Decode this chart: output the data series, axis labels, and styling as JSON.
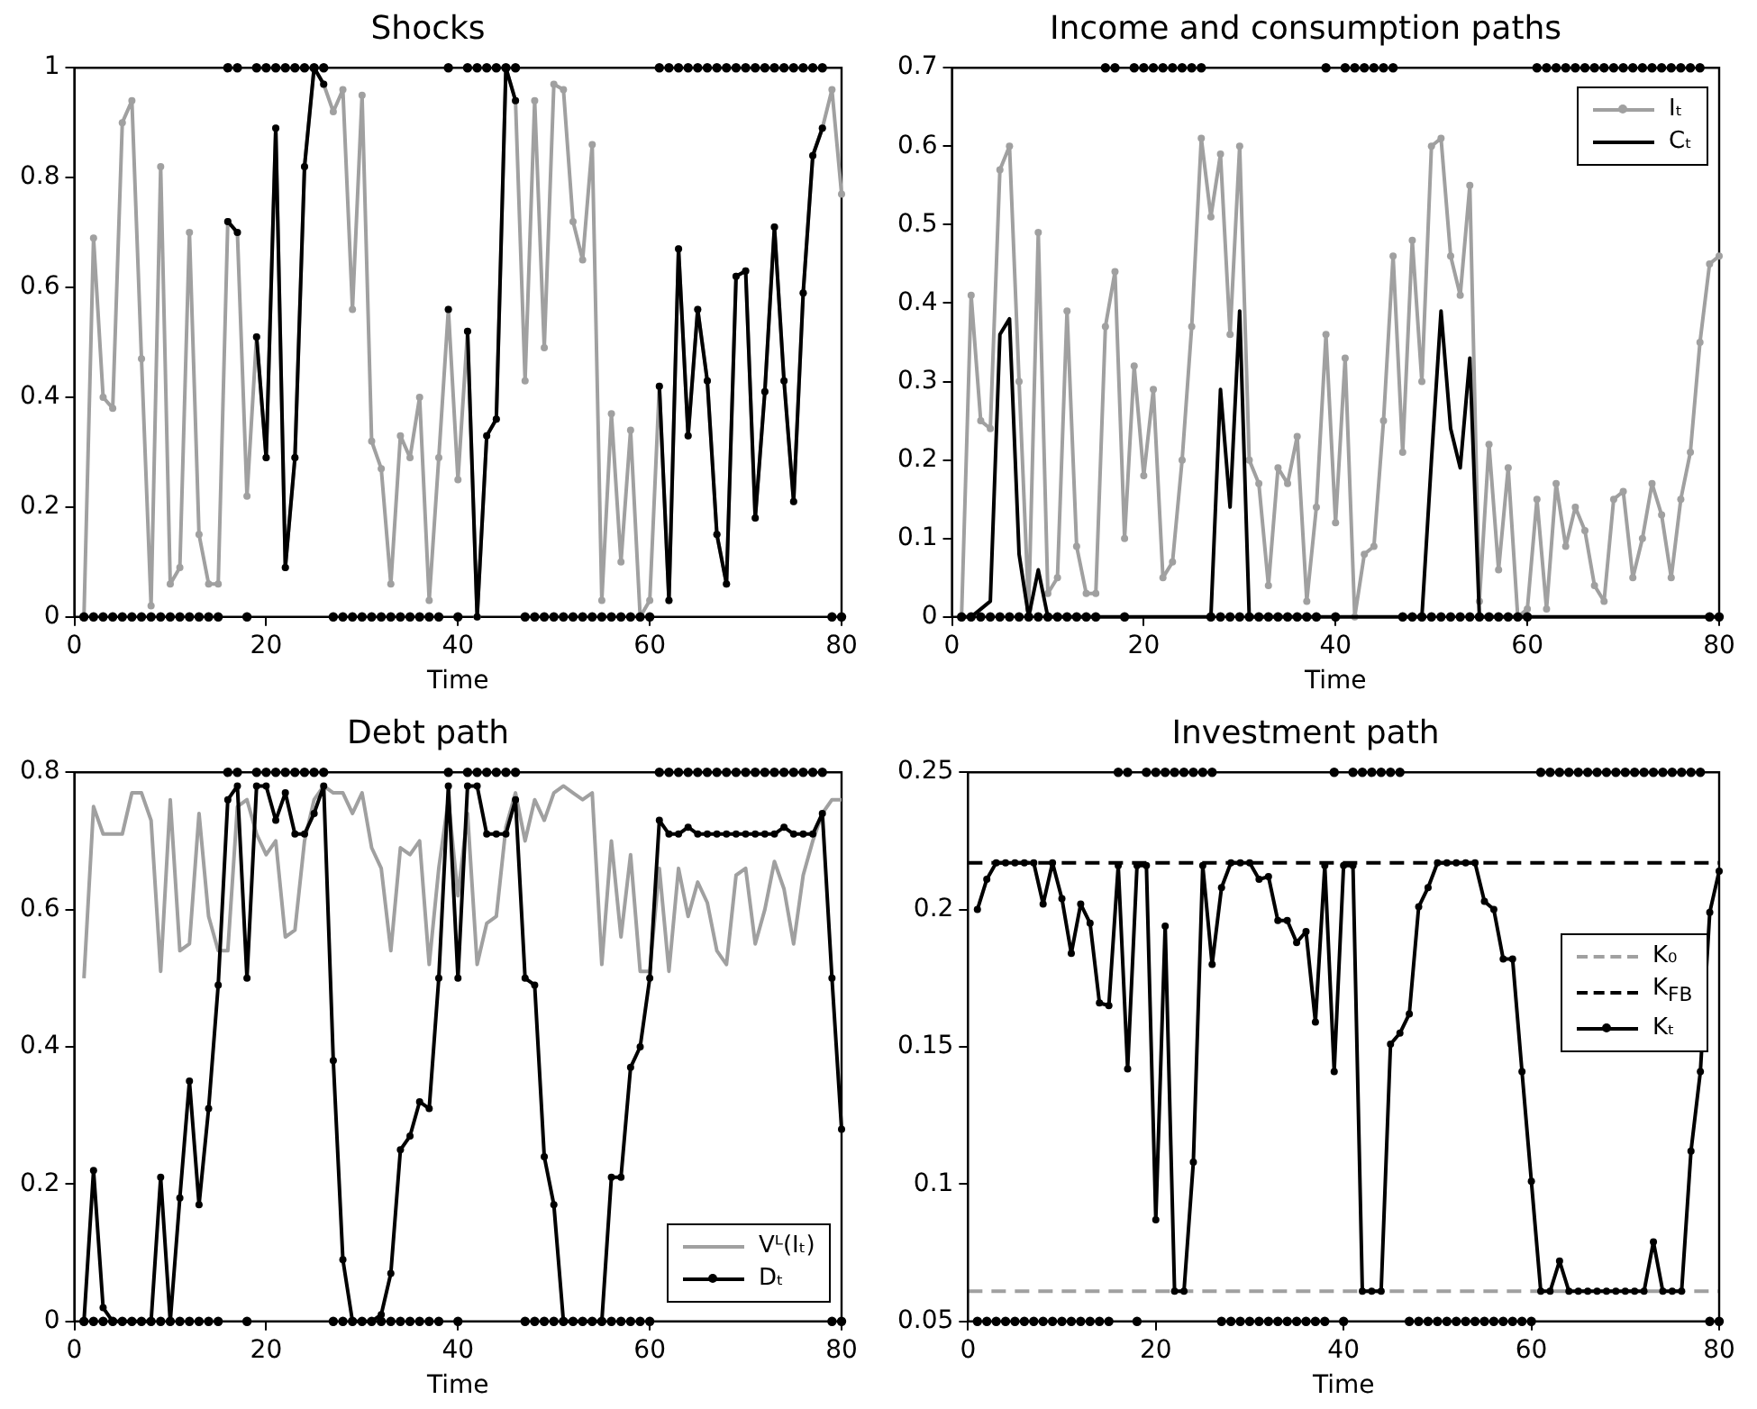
{
  "chart_data": [
    {
      "type": "line",
      "title": "Shocks",
      "xlabel": "Time",
      "grid": false,
      "legend": false,
      "x": [
        1,
        2,
        3,
        4,
        5,
        6,
        7,
        8,
        9,
        10,
        11,
        12,
        13,
        14,
        15,
        16,
        17,
        18,
        19,
        20,
        21,
        22,
        23,
        24,
        25,
        26,
        27,
        28,
        29,
        30,
        31,
        32,
        33,
        34,
        35,
        36,
        37,
        38,
        39,
        40,
        41,
        42,
        43,
        44,
        45,
        46,
        47,
        48,
        49,
        50,
        51,
        52,
        53,
        54,
        55,
        56,
        57,
        58,
        59,
        60,
        61,
        62,
        63,
        64,
        65,
        66,
        67,
        68,
        69,
        70,
        71,
        72,
        73,
        74,
        75,
        76,
        77,
        78,
        79,
        80
      ],
      "xlim": [
        0,
        80
      ],
      "xticks": [
        0,
        20,
        40,
        60,
        80
      ],
      "ylim": [
        0,
        1
      ],
      "yticks": [
        0,
        0.2,
        0.4,
        0.6,
        0.8,
        1
      ],
      "series": [
        {
          "color": "#a0a0a0",
          "marker": "circle",
          "line_style": "solid",
          "values": [
            0,
            0.69,
            0.4,
            0.38,
            0.9,
            0.94,
            0.47,
            0.02,
            0.82,
            0.06,
            0.09,
            0.7,
            0.15,
            0.06,
            0.06,
            0.72,
            0.7,
            0.22,
            0.51,
            0.29,
            0.89,
            0.09,
            0.29,
            0.82,
            1.0,
            0.97,
            0.92,
            0.96,
            0.56,
            0.95,
            0.32,
            0.27,
            0.06,
            0.33,
            0.29,
            0.4,
            0.03,
            0.29,
            0.56,
            0.25,
            0.52,
            0,
            0.33,
            0.36,
            1.0,
            0.94,
            0.43,
            0.94,
            0.49,
            0.97,
            0.96,
            0.72,
            0.65,
            0.86,
            0.03,
            0.37,
            0.1,
            0.34,
            0,
            0.03,
            0.42,
            0.03,
            0.67,
            0.33,
            0.56,
            0.43,
            0.15,
            0.06,
            0.62,
            0.63,
            0.18,
            0.41,
            0.71,
            0.43,
            0.21,
            0.59,
            0.84,
            0.89,
            0.96,
            0.77
          ]
        },
        {
          "color": "#000000",
          "marker": "circle",
          "line_style": "solid",
          "values": [
            null,
            null,
            null,
            null,
            null,
            null,
            null,
            null,
            null,
            null,
            null,
            null,
            null,
            null,
            null,
            0.72,
            0.7,
            null,
            0.51,
            0.29,
            0.89,
            0.09,
            0.29,
            0.82,
            1.0,
            0.97,
            null,
            null,
            null,
            null,
            null,
            null,
            null,
            null,
            null,
            null,
            null,
            null,
            0.56,
            null,
            0.52,
            0,
            0.33,
            0.36,
            1.0,
            0.94,
            null,
            null,
            null,
            null,
            null,
            null,
            null,
            null,
            null,
            null,
            null,
            null,
            null,
            null,
            0.42,
            0.03,
            0.67,
            0.33,
            0.56,
            0.43,
            0.15,
            0.06,
            0.62,
            0.63,
            0.18,
            0.41,
            0.71,
            0.43,
            0.21,
            0.59,
            0.84,
            0.89,
            null,
            null
          ]
        },
        {
          "type": "scatter",
          "color": "#000000",
          "marker": "circle",
          "values": [
            0,
            0,
            0,
            0,
            0,
            0,
            0,
            0,
            0,
            0,
            0,
            0,
            0,
            0,
            0,
            1,
            1,
            0,
            1,
            1,
            1,
            1,
            1,
            1,
            1,
            1,
            0,
            0,
            0,
            0,
            0,
            0,
            0,
            0,
            0,
            0,
            0,
            0,
            1,
            0,
            1,
            1,
            1,
            1,
            1,
            1,
            0,
            0,
            0,
            0,
            0,
            0,
            0,
            0,
            0,
            0,
            0,
            0,
            0,
            0,
            1,
            1,
            1,
            1,
            1,
            1,
            1,
            1,
            1,
            1,
            1,
            1,
            1,
            1,
            1,
            1,
            1,
            1,
            0,
            0
          ]
        }
      ]
    },
    {
      "type": "line",
      "title": "Income and consumption paths",
      "xlabel": "Time",
      "grid": false,
      "legend": "top right",
      "x": [
        1,
        2,
        3,
        4,
        5,
        6,
        7,
        8,
        9,
        10,
        11,
        12,
        13,
        14,
        15,
        16,
        17,
        18,
        19,
        20,
        21,
        22,
        23,
        24,
        25,
        26,
        27,
        28,
        29,
        30,
        31,
        32,
        33,
        34,
        35,
        36,
        37,
        38,
        39,
        40,
        41,
        42,
        43,
        44,
        45,
        46,
        47,
        48,
        49,
        50,
        51,
        52,
        53,
        54,
        55,
        56,
        57,
        58,
        59,
        60,
        61,
        62,
        63,
        64,
        65,
        66,
        67,
        68,
        69,
        70,
        71,
        72,
        73,
        74,
        75,
        76,
        77,
        78,
        79,
        80
      ],
      "xlim": [
        0,
        80
      ],
      "xticks": [
        0,
        20,
        40,
        60,
        80
      ],
      "ylim": [
        0,
        0.7
      ],
      "yticks": [
        0,
        0.1,
        0.2,
        0.3,
        0.4,
        0.5,
        0.6,
        0.7
      ],
      "series": [
        {
          "name": "Iₜ",
          "color": "#a0a0a0",
          "marker": "circle",
          "line_style": "solid",
          "values": [
            0,
            0.41,
            0.25,
            0.24,
            0.57,
            0.6,
            0.3,
            0.01,
            0.49,
            0.03,
            0.05,
            0.39,
            0.09,
            0.03,
            0.03,
            0.37,
            0.44,
            0.1,
            0.32,
            0.18,
            0.29,
            0.05,
            0.07,
            0.2,
            0.37,
            0.61,
            0.51,
            0.59,
            0.36,
            0.6,
            0.2,
            0.17,
            0.04,
            0.19,
            0.17,
            0.23,
            0.02,
            0.14,
            0.36,
            0.12,
            0.33,
            0,
            0.08,
            0.09,
            0.25,
            0.46,
            0.21,
            0.48,
            0.3,
            0.6,
            0.61,
            0.46,
            0.41,
            0.55,
            0.02,
            0.22,
            0.06,
            0.19,
            0,
            0.01,
            0.15,
            0.01,
            0.17,
            0.09,
            0.14,
            0.11,
            0.04,
            0.02,
            0.15,
            0.16,
            0.05,
            0.1,
            0.17,
            0.13,
            0.05,
            0.15,
            0.21,
            0.35,
            0.45,
            0.46
          ]
        },
        {
          "name": "Cₜ",
          "color": "#000000",
          "marker": "none",
          "line_style": "solid",
          "values": [
            0,
            0,
            0.01,
            0.02,
            0.36,
            0.38,
            0.08,
            0,
            0.06,
            0,
            0,
            0,
            0,
            0,
            0,
            0,
            0,
            0,
            0,
            0,
            0,
            0,
            0,
            0,
            0,
            0,
            0,
            0.29,
            0.14,
            0.39,
            0,
            0,
            0,
            0,
            0,
            0,
            0,
            0,
            0,
            0,
            0,
            0,
            0,
            0,
            0,
            0,
            0,
            0,
            0,
            0.2,
            0.39,
            0.24,
            0.19,
            0.33,
            0,
            0,
            0,
            0,
            0,
            0,
            0,
            0,
            0,
            0,
            0,
            0,
            0,
            0,
            0,
            0,
            0,
            0,
            0,
            0,
            0,
            0,
            0,
            0,
            0,
            0
          ]
        },
        {
          "type": "scatter",
          "color": "#000000",
          "marker": "circle",
          "values": [
            0,
            0,
            0,
            0,
            0,
            0,
            0,
            0,
            0,
            0,
            0,
            0,
            0,
            0,
            0,
            0.7,
            0.7,
            0,
            0.7,
            0.7,
            0.7,
            0.7,
            0.7,
            0.7,
            0.7,
            0.7,
            0,
            0,
            0,
            0,
            0,
            0,
            0,
            0,
            0,
            0,
            0,
            0,
            0.7,
            0,
            0.7,
            0.7,
            0.7,
            0.7,
            0.7,
            0.7,
            0,
            0,
            0,
            0,
            0,
            0,
            0,
            0,
            0,
            0,
            0,
            0,
            0,
            0,
            0.7,
            0.7,
            0.7,
            0.7,
            0.7,
            0.7,
            0.7,
            0.7,
            0.7,
            0.7,
            0.7,
            0.7,
            0.7,
            0.7,
            0.7,
            0.7,
            0.7,
            0.7,
            0,
            0
          ]
        }
      ]
    },
    {
      "type": "line",
      "title": "Debt path",
      "xlabel": "Time",
      "grid": false,
      "legend": "bottom right",
      "x": [
        1,
        2,
        3,
        4,
        5,
        6,
        7,
        8,
        9,
        10,
        11,
        12,
        13,
        14,
        15,
        16,
        17,
        18,
        19,
        20,
        21,
        22,
        23,
        24,
        25,
        26,
        27,
        28,
        29,
        30,
        31,
        32,
        33,
        34,
        35,
        36,
        37,
        38,
        39,
        40,
        41,
        42,
        43,
        44,
        45,
        46,
        47,
        48,
        49,
        50,
        51,
        52,
        53,
        54,
        55,
        56,
        57,
        58,
        59,
        60,
        61,
        62,
        63,
        64,
        65,
        66,
        67,
        68,
        69,
        70,
        71,
        72,
        73,
        74,
        75,
        76,
        77,
        78,
        79,
        80
      ],
      "xlim": [
        0,
        80
      ],
      "xticks": [
        0,
        20,
        40,
        60,
        80
      ],
      "ylim": [
        0,
        0.8
      ],
      "yticks": [
        0,
        0.2,
        0.4,
        0.6,
        0.8
      ],
      "series": [
        {
          "name": "Vᴸ(Iₜ)",
          "color": "#a0a0a0",
          "marker": "none",
          "line_style": "solid",
          "values": [
            0.5,
            0.75,
            0.71,
            0.71,
            0.71,
            0.77,
            0.77,
            0.73,
            0.51,
            0.76,
            0.54,
            0.55,
            0.74,
            0.59,
            0.54,
            0.54,
            0.75,
            0.76,
            0.71,
            0.68,
            0.7,
            0.56,
            0.57,
            0.7,
            0.76,
            0.78,
            0.77,
            0.77,
            0.74,
            0.77,
            0.69,
            0.66,
            0.54,
            0.69,
            0.68,
            0.7,
            0.52,
            0.66,
            0.76,
            0.62,
            0.74,
            0.52,
            0.58,
            0.59,
            0.72,
            0.77,
            0.7,
            0.76,
            0.73,
            0.77,
            0.78,
            0.77,
            0.76,
            0.77,
            0.52,
            0.7,
            0.56,
            0.68,
            0.51,
            0.51,
            0.66,
            0.51,
            0.66,
            0.59,
            0.64,
            0.61,
            0.54,
            0.52,
            0.65,
            0.66,
            0.55,
            0.6,
            0.67,
            0.63,
            0.55,
            0.65,
            0.7,
            0.74,
            0.76,
            0.76
          ]
        },
        {
          "name": "Dₜ",
          "color": "#000000",
          "marker": "circle",
          "line_style": "solid",
          "values": [
            0,
            0.22,
            0.02,
            0,
            0,
            0,
            0,
            0,
            0.21,
            0,
            0.18,
            0.35,
            0.17,
            0.31,
            0.49,
            0.76,
            0.78,
            0.5,
            0.78,
            0.78,
            0.73,
            0.77,
            0.71,
            0.71,
            0.74,
            0.78,
            0.38,
            0.09,
            0,
            0,
            0,
            0.01,
            0.07,
            0.25,
            0.27,
            0.32,
            0.31,
            0.5,
            0.78,
            0.5,
            0.78,
            0.78,
            0.71,
            0.71,
            0.71,
            0.76,
            0.5,
            0.49,
            0.24,
            0.17,
            0,
            0,
            0,
            0,
            0,
            0.21,
            0.21,
            0.37,
            0.4,
            0.5,
            0.73,
            0.71,
            0.71,
            0.72,
            0.71,
            0.71,
            0.71,
            0.71,
            0.71,
            0.71,
            0.71,
            0.71,
            0.71,
            0.72,
            0.71,
            0.71,
            0.71,
            0.74,
            0.5,
            0.28
          ]
        },
        {
          "type": "scatter",
          "color": "#000000",
          "marker": "circle",
          "values": [
            0,
            0,
            0,
            0,
            0,
            0,
            0,
            0,
            0,
            0,
            0,
            0,
            0,
            0,
            0,
            0.8,
            0.8,
            0,
            0.8,
            0.8,
            0.8,
            0.8,
            0.8,
            0.8,
            0.8,
            0.8,
            0,
            0,
            0,
            0,
            0,
            0,
            0,
            0,
            0,
            0,
            0,
            0,
            0.8,
            0,
            0.8,
            0.8,
            0.8,
            0.8,
            0.8,
            0.8,
            0,
            0,
            0,
            0,
            0,
            0,
            0,
            0,
            0,
            0,
            0,
            0,
            0,
            0,
            0.8,
            0.8,
            0.8,
            0.8,
            0.8,
            0.8,
            0.8,
            0.8,
            0.8,
            0.8,
            0.8,
            0.8,
            0.8,
            0.8,
            0.8,
            0.8,
            0.8,
            0.8,
            0,
            0
          ]
        }
      ]
    },
    {
      "type": "line",
      "title": "Investment path",
      "xlabel": "Time",
      "grid": false,
      "legend": "right",
      "x": [
        1,
        2,
        3,
        4,
        5,
        6,
        7,
        8,
        9,
        10,
        11,
        12,
        13,
        14,
        15,
        16,
        17,
        18,
        19,
        20,
        21,
        22,
        23,
        24,
        25,
        26,
        27,
        28,
        29,
        30,
        31,
        32,
        33,
        34,
        35,
        36,
        37,
        38,
        39,
        40,
        41,
        42,
        43,
        44,
        45,
        46,
        47,
        48,
        49,
        50,
        51,
        52,
        53,
        54,
        55,
        56,
        57,
        58,
        59,
        60,
        61,
        62,
        63,
        64,
        65,
        66,
        67,
        68,
        69,
        70,
        71,
        72,
        73,
        74,
        75,
        76,
        77,
        78,
        79,
        80
      ],
      "xlim": [
        0,
        80
      ],
      "xticks": [
        0,
        20,
        40,
        60,
        80
      ],
      "ylim": [
        0.05,
        0.25
      ],
      "yticks": [
        0.05,
        0.1,
        0.15,
        0.2,
        0.25
      ],
      "ref_lines": [
        {
          "axis": "y",
          "value": 0.061,
          "label": "K₀",
          "color": "#a0a0a0",
          "line_style": "dashed"
        },
        {
          "axis": "y",
          "value": 0.217,
          "label": "K$_{FB}$",
          "color": "#000000",
          "line_style": "dashed"
        }
      ],
      "series": [
        {
          "name": "Kₜ",
          "color": "#000000",
          "marker": "circle",
          "line_style": "solid",
          "values": [
            0.2,
            0.211,
            0.217,
            0.217,
            0.217,
            0.217,
            0.217,
            0.202,
            0.217,
            0.204,
            0.184,
            0.202,
            0.195,
            0.166,
            0.165,
            0.216,
            0.142,
            0.216,
            0.216,
            0.087,
            0.194,
            0.061,
            0.061,
            0.108,
            0.216,
            0.18,
            0.208,
            0.217,
            0.217,
            0.217,
            0.211,
            0.212,
            0.196,
            0.196,
            0.188,
            0.192,
            0.159,
            0.216,
            0.141,
            0.216,
            0.216,
            0.061,
            0.061,
            0.061,
            0.151,
            0.155,
            0.162,
            0.201,
            0.208,
            0.217,
            0.217,
            0.217,
            0.217,
            0.217,
            0.203,
            0.2,
            0.182,
            0.182,
            0.141,
            0.101,
            0.061,
            0.061,
            0.072,
            0.061,
            0.061,
            0.061,
            0.061,
            0.061,
            0.061,
            0.061,
            0.061,
            0.061,
            0.079,
            0.061,
            0.061,
            0.061,
            0.112,
            0.141,
            0.199,
            0.214
          ]
        },
        {
          "type": "scatter",
          "color": "#000000",
          "marker": "circle",
          "values": [
            0.05,
            0.05,
            0.05,
            0.05,
            0.05,
            0.05,
            0.05,
            0.05,
            0.05,
            0.05,
            0.05,
            0.05,
            0.05,
            0.05,
            0.05,
            0.25,
            0.25,
            0.05,
            0.25,
            0.25,
            0.25,
            0.25,
            0.25,
            0.25,
            0.25,
            0.25,
            0.05,
            0.05,
            0.05,
            0.05,
            0.05,
            0.05,
            0.05,
            0.05,
            0.05,
            0.05,
            0.05,
            0.05,
            0.25,
            0.05,
            0.25,
            0.25,
            0.25,
            0.25,
            0.25,
            0.25,
            0.05,
            0.05,
            0.05,
            0.05,
            0.05,
            0.05,
            0.05,
            0.05,
            0.05,
            0.05,
            0.05,
            0.05,
            0.05,
            0.05,
            0.25,
            0.25,
            0.25,
            0.25,
            0.25,
            0.25,
            0.25,
            0.25,
            0.25,
            0.25,
            0.25,
            0.25,
            0.25,
            0.25,
            0.25,
            0.25,
            0.25,
            0.25,
            0.05,
            0.05
          ]
        }
      ]
    }
  ]
}
